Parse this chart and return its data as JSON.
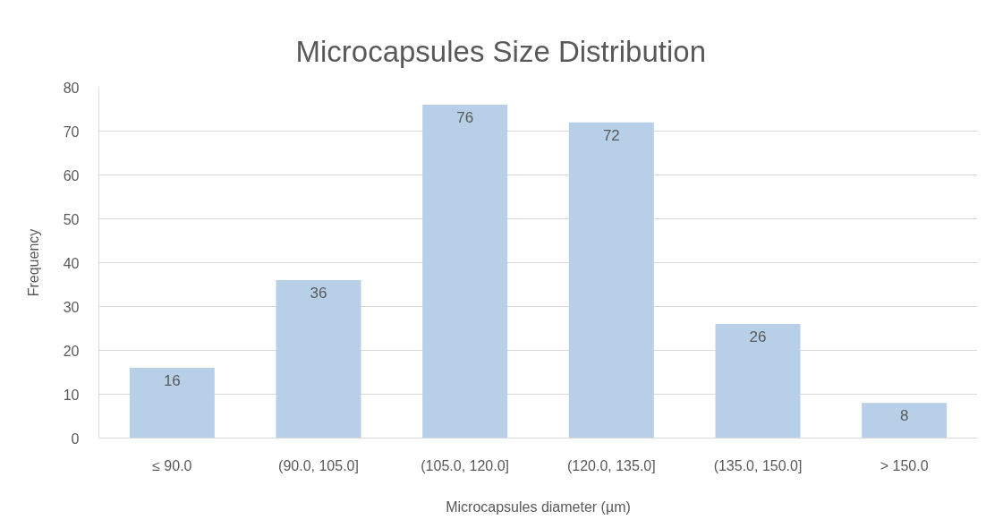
{
  "chart_data": {
    "type": "bar",
    "title": "Microcapsules Size Distribution",
    "xlabel": "Microcapsules diameter (µm)",
    "ylabel": "Frequency",
    "categories": [
      "≤ 90.0",
      "(90.0, 105.0]",
      "(105.0, 120.0]",
      "(120.0, 135.0]",
      "(135.0, 150.0]",
      "> 150.0"
    ],
    "values": [
      16,
      36,
      76,
      72,
      26,
      8
    ],
    "color": "#b7d0e8",
    "ylim": [
      0,
      80
    ],
    "yticks": [
      0,
      10,
      20,
      30,
      40,
      50,
      60,
      70,
      80
    ],
    "grid": "y",
    "data_labels": true
  }
}
